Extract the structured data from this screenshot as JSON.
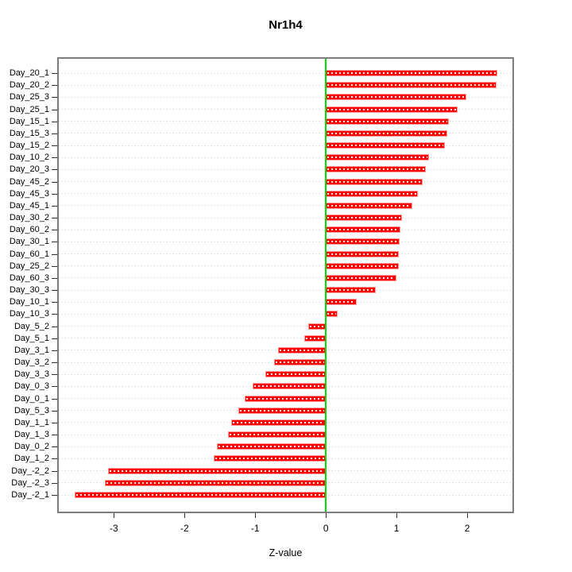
{
  "title": "Nr1h4",
  "x_axis_label": "Z-value",
  "chart_data": {
    "type": "bar",
    "orientation": "horizontal",
    "title": "Nr1h4",
    "xlabel": "Z-value",
    "ylabel": "",
    "categories": [
      "Day_20_1",
      "Day_20_2",
      "Day_25_3",
      "Day_25_1",
      "Day_15_1",
      "Day_15_3",
      "Day_15_2",
      "Day_10_2",
      "Day_20_3",
      "Day_45_2",
      "Day_45_3",
      "Day_45_1",
      "Day_30_2",
      "Day_60_2",
      "Day_30_1",
      "Day_60_1",
      "Day_25_2",
      "Day_60_3",
      "Day_30_3",
      "Day_10_1",
      "Day_10_3",
      "Day_5_2",
      "Day_5_1",
      "Day_3_1",
      "Day_3_2",
      "Day_3_3",
      "Day_0_3",
      "Day_0_1",
      "Day_5_3",
      "Day_1_1",
      "Day_1_3",
      "Day_0_2",
      "Day_1_2",
      "Day_-2_2",
      "Day_-2_3",
      "Day_-2_1"
    ],
    "values": [
      2.43,
      2.41,
      1.99,
      1.86,
      1.74,
      1.72,
      1.69,
      1.46,
      1.42,
      1.37,
      1.3,
      1.22,
      1.08,
      1.06,
      1.04,
      1.03,
      1.03,
      1.0,
      0.71,
      0.44,
      0.17,
      -0.25,
      -0.31,
      -0.68,
      -0.73,
      -0.86,
      -1.04,
      -1.15,
      -1.24,
      -1.34,
      -1.39,
      -1.54,
      -1.59,
      -3.08,
      -3.13,
      -3.55
    ],
    "xlim": [
      -3.78,
      2.64
    ],
    "x_ticks": [
      -3,
      -2,
      -1,
      0,
      1,
      2
    ],
    "grid": "dotted horizontal line per category, full plot width",
    "legend": null,
    "zero_reference_line": 0,
    "colors": {
      "bar": "#fe0000",
      "bar_edge": "#ff9c9c",
      "zero_line": "#00dc00",
      "grid": "#c9c9c9",
      "box": "#7d7d7d",
      "tick": "#2e2e2e",
      "text": "#000000"
    }
  }
}
